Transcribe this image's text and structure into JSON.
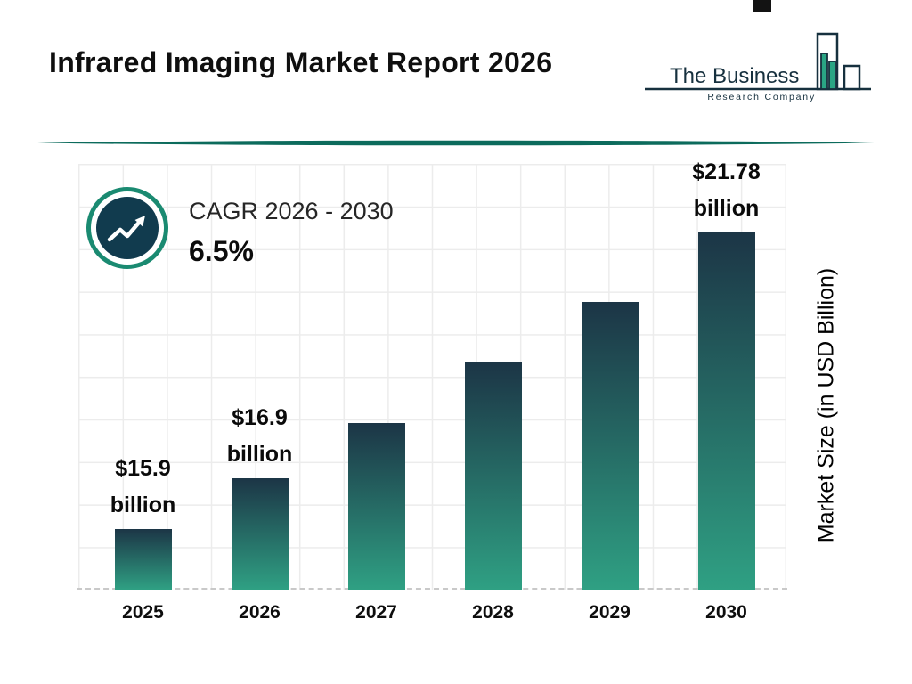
{
  "header": {
    "title": "Infrared Imaging Market Report 2026",
    "logo": {
      "line1": "The Business",
      "line2": "Research Company"
    }
  },
  "cagr": {
    "label": "CAGR 2026 - 2030",
    "value": "6.5%"
  },
  "chart_data": {
    "type": "bar",
    "title": "Infrared Imaging Market Report 2026",
    "categories": [
      "2025",
      "2026",
      "2027",
      "2028",
      "2029",
      "2030"
    ],
    "values": [
      15.9,
      16.9,
      18.0,
      19.2,
      20.4,
      21.78
    ],
    "labels": [
      {
        "line1": "$15.9",
        "line2": "billion"
      },
      {
        "line1": "$16.9",
        "line2": "billion"
      },
      null,
      null,
      null,
      {
        "line1": "$21.78",
        "line2": "billion"
      }
    ],
    "xlabel": "",
    "ylabel": "Market Size (in USD Billion)",
    "ylim": [
      14.7,
      23.2
    ],
    "grid": true,
    "legend": false,
    "colors": {
      "bar_gradient_top": "#1c3546",
      "bar_gradient_bottom": "#2fa083",
      "accent_teal": "#1a8a71",
      "icon_circle_navy": "#113b4e",
      "divider_teal": "#0c6b5c",
      "logo_green": "#2aa584",
      "logo_navy": "#16303e"
    }
  }
}
